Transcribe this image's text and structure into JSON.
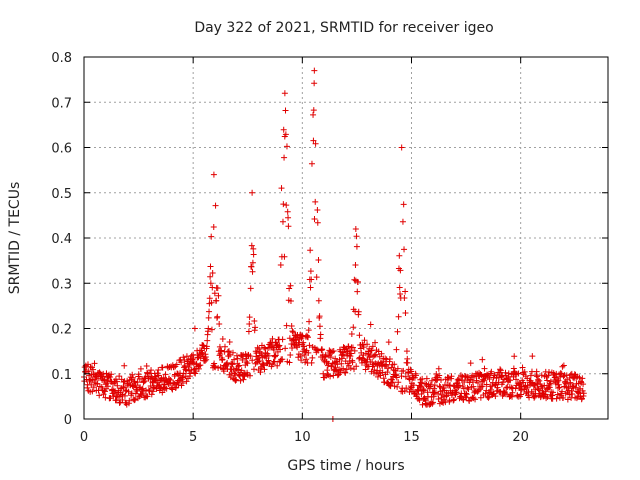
{
  "chart_data": {
    "type": "scatter",
    "title": "Day 322 of 2021, SRMTID for receiver igeo",
    "xlabel": "GPS time / hours",
    "ylabel": "SRMTID / TECUs",
    "xlim": [
      0,
      24
    ],
    "ylim": [
      0,
      0.8
    ],
    "xticks": [
      0,
      5,
      10,
      15,
      20
    ],
    "yticks": [
      0,
      0.1,
      0.2,
      0.3,
      0.4,
      0.5,
      0.6,
      0.7,
      0.8
    ],
    "xtick_labels": [
      "0",
      "5",
      "10",
      "15",
      "20"
    ],
    "ytick_labels": [
      "0",
      "0.1",
      "0.2",
      "0.3",
      "0.4",
      "0.5",
      "0.6",
      "0.7",
      "0.8"
    ],
    "grid": true,
    "marker": "plus",
    "color": "#e00000",
    "series": [
      {
        "name": "SRMTID",
        "sample_interval_hours": 0.0166,
        "baseline": [
          [
            0,
            0.095
          ],
          [
            1,
            0.075
          ],
          [
            2,
            0.06
          ],
          [
            3,
            0.08
          ],
          [
            4,
            0.09
          ],
          [
            5,
            0.12
          ],
          [
            5.5,
            0.14
          ],
          [
            6,
            0.14
          ],
          [
            7,
            0.11
          ],
          [
            8,
            0.13
          ],
          [
            9,
            0.15
          ],
          [
            10,
            0.16
          ],
          [
            11,
            0.12
          ],
          [
            12,
            0.13
          ],
          [
            13,
            0.14
          ],
          [
            14,
            0.1
          ],
          [
            15,
            0.08
          ],
          [
            15.5,
            0.06
          ],
          [
            17,
            0.065
          ],
          [
            19,
            0.08
          ],
          [
            21,
            0.075
          ],
          [
            23,
            0.07
          ]
        ],
        "spread": 0.03,
        "bursts": [
          {
            "start": 5.6,
            "end": 6.3,
            "peak_hour": 5.95,
            "peak_value": 0.54
          },
          {
            "start": 7.5,
            "end": 7.9,
            "peak_hour": 7.7,
            "peak_value": 0.5
          },
          {
            "start": 9.0,
            "end": 9.8,
            "peak_hour": 9.2,
            "peak_value": 0.72
          },
          {
            "start": 10.2,
            "end": 10.9,
            "peak_hour": 10.55,
            "peak_value": 0.77
          },
          {
            "start": 12.2,
            "end": 12.7,
            "peak_hour": 12.45,
            "peak_value": 0.42
          },
          {
            "start": 14.3,
            "end": 14.9,
            "peak_hour": 14.55,
            "peak_value": 0.6
          }
        ],
        "outliers": [
          [
            11.4,
            0.0
          ]
        ],
        "end_hour": 22.9
      }
    ]
  }
}
